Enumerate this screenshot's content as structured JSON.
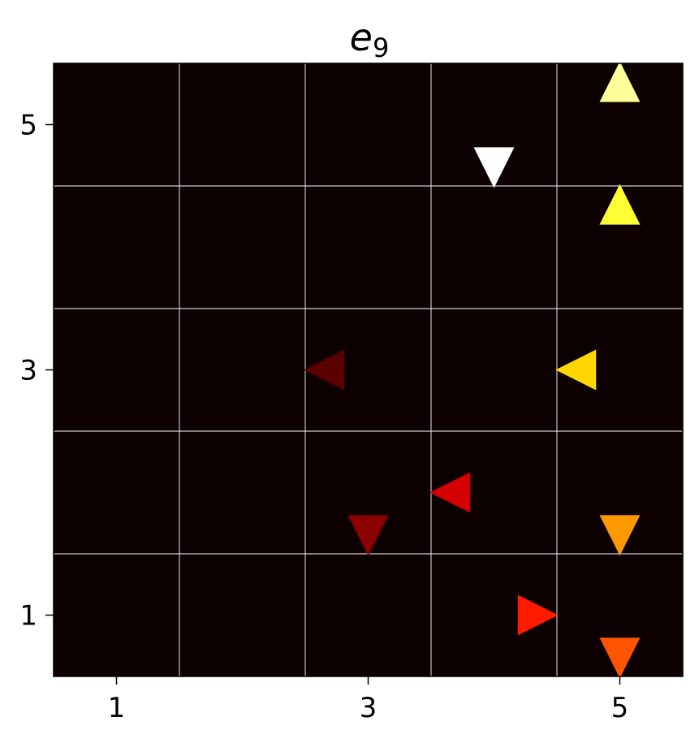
{
  "chart_data": {
    "type": "scatter",
    "title": "e",
    "title_subscript": "9",
    "xlabel": "",
    "ylabel": "",
    "xlim": [
      0.5,
      5.5
    ],
    "ylim": [
      0.5,
      5.5
    ],
    "xticks": [
      1,
      3,
      5
    ],
    "yticks": [
      1,
      3,
      5
    ],
    "xtick_labels": [
      "1",
      "3",
      "5"
    ],
    "ytick_labels": [
      "1",
      "3",
      "5"
    ],
    "grid": true,
    "grid_lines": [
      1.5,
      2.5,
      3.5,
      4.5
    ],
    "background": "#0c0000",
    "grid_color": "#ffffff",
    "points": [
      {
        "x": 5.0,
        "y": 5.35,
        "marker": "triangle-up",
        "color": "#ffff99"
      },
      {
        "x": 4.0,
        "y": 4.65,
        "marker": "triangle-down",
        "color": "#ffffff"
      },
      {
        "x": 5.0,
        "y": 4.35,
        "marker": "triangle-up",
        "color": "#ffff33"
      },
      {
        "x": 2.65,
        "y": 3.0,
        "marker": "triangle-left",
        "color": "#5a0000"
      },
      {
        "x": 4.65,
        "y": 3.0,
        "marker": "triangle-left",
        "color": "#ffd700"
      },
      {
        "x": 3.65,
        "y": 2.0,
        "marker": "triangle-left",
        "color": "#d40000"
      },
      {
        "x": 3.0,
        "y": 1.65,
        "marker": "triangle-down",
        "color": "#8b0000"
      },
      {
        "x": 5.0,
        "y": 1.65,
        "marker": "triangle-down",
        "color": "#ff9900"
      },
      {
        "x": 4.35,
        "y": 1.0,
        "marker": "triangle-right",
        "color": "#ff1a00"
      },
      {
        "x": 5.0,
        "y": 0.65,
        "marker": "triangle-down",
        "color": "#ff5500"
      }
    ]
  }
}
